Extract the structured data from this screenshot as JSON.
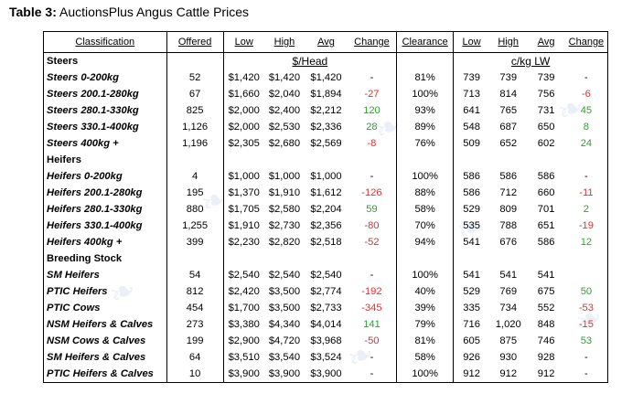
{
  "title": {
    "prefix": "Table 3:",
    "text": "AuctionsPlus Angus Cattle Prices"
  },
  "colors": {
    "positive": "#2aa52a",
    "negative": "#e03030"
  },
  "headers": {
    "classification": "Classification",
    "offered": "Offered",
    "low": "Low",
    "high": "High",
    "avg": "Avg",
    "change": "Change",
    "clearance": "Clearance",
    "kg_low": "Low",
    "kg_high": "High",
    "kg_avg": "Avg",
    "kg_change": "Change"
  },
  "units": {
    "head": "$/Head",
    "kg": "c/kg LW"
  },
  "sections": [
    {
      "name": "Steers",
      "rows": [
        {
          "cls": "Steers 0-200kg",
          "offered": "52",
          "low": "$1,420",
          "high": "$1,420",
          "avg": "$1,420",
          "change": "-",
          "clearance": "81%",
          "kg_low": "739",
          "kg_high": "739",
          "kg_avg": "739",
          "kg_change": "-"
        },
        {
          "cls": "Steers 200.1-280kg",
          "offered": "67",
          "low": "$1,660",
          "high": "$2,040",
          "avg": "$1,894",
          "change": "-27",
          "clearance": "100%",
          "kg_low": "713",
          "kg_high": "814",
          "kg_avg": "756",
          "kg_change": "-6"
        },
        {
          "cls": "Steers 280.1-330kg",
          "offered": "825",
          "low": "$2,000",
          "high": "$2,400",
          "avg": "$2,212",
          "change": "120",
          "clearance": "93%",
          "kg_low": "641",
          "kg_high": "765",
          "kg_avg": "731",
          "kg_change": "45"
        },
        {
          "cls": "Steers 330.1-400kg",
          "offered": "1,126",
          "low": "$2,000",
          "high": "$2,530",
          "avg": "$2,336",
          "change": "28",
          "clearance": "89%",
          "kg_low": "548",
          "kg_high": "687",
          "kg_avg": "650",
          "kg_change": "8"
        },
        {
          "cls": "Steers 400kg +",
          "offered": "1,196",
          "low": "$2,305",
          "high": "$2,680",
          "avg": "$2,569",
          "change": "-8",
          "clearance": "76%",
          "kg_low": "509",
          "kg_high": "652",
          "kg_avg": "602",
          "kg_change": "24"
        }
      ]
    },
    {
      "name": "Heifers",
      "rows": [
        {
          "cls": "Heifers 0-200kg",
          "offered": "4",
          "low": "$1,000",
          "high": "$1,000",
          "avg": "$1,000",
          "change": "-",
          "clearance": "100%",
          "kg_low": "586",
          "kg_high": "586",
          "kg_avg": "586",
          "kg_change": "-"
        },
        {
          "cls": "Heifers 200.1-280kg",
          "offered": "195",
          "low": "$1,370",
          "high": "$1,910",
          "avg": "$1,612",
          "change": "-126",
          "clearance": "88%",
          "kg_low": "586",
          "kg_high": "712",
          "kg_avg": "660",
          "kg_change": "-11"
        },
        {
          "cls": "Heifers 280.1-330kg",
          "offered": "880",
          "low": "$1,705",
          "high": "$2,580",
          "avg": "$2,204",
          "change": "59",
          "clearance": "58%",
          "kg_low": "529",
          "kg_high": "809",
          "kg_avg": "701",
          "kg_change": "2"
        },
        {
          "cls": "Heifers 330.1-400kg",
          "offered": "1,255",
          "low": "$1,910",
          "high": "$2,730",
          "avg": "$2,356",
          "change": "-80",
          "clearance": "70%",
          "kg_low": "535",
          "kg_high": "788",
          "kg_avg": "651",
          "kg_change": "-19"
        },
        {
          "cls": "Heifers 400kg +",
          "offered": "399",
          "low": "$2,230",
          "high": "$2,820",
          "avg": "$2,518",
          "change": "-52",
          "clearance": "94%",
          "kg_low": "541",
          "kg_high": "676",
          "kg_avg": "586",
          "kg_change": "12"
        }
      ]
    },
    {
      "name": "Breeding Stock",
      "rows": [
        {
          "cls": "SM Heifers",
          "offered": "54",
          "low": "$2,540",
          "high": "$2,540",
          "avg": "$2,540",
          "change": "-",
          "clearance": "100%",
          "kg_low": "541",
          "kg_high": "541",
          "kg_avg": "541",
          "kg_change": ""
        },
        {
          "cls": "PTIC Heifers",
          "offered": "812",
          "low": "$2,420",
          "high": "$3,500",
          "avg": "$2,774",
          "change": "-192",
          "clearance": "40%",
          "kg_low": "529",
          "kg_high": "769",
          "kg_avg": "675",
          "kg_change": "50"
        },
        {
          "cls": "PTIC Cows",
          "offered": "454",
          "low": "$1,700",
          "high": "$3,500",
          "avg": "$2,733",
          "change": "-345",
          "clearance": "39%",
          "kg_low": "335",
          "kg_high": "734",
          "kg_avg": "552",
          "kg_change": "-53"
        },
        {
          "cls": "NSM Heifers & Calves",
          "offered": "273",
          "low": "$3,380",
          "high": "$4,340",
          "avg": "$4,014",
          "change": "141",
          "clearance": "79%",
          "kg_low": "716",
          "kg_high": "1,020",
          "kg_avg": "848",
          "kg_change": "-15"
        },
        {
          "cls": "NSM Cows & Calves",
          "offered": "199",
          "low": "$2,900",
          "high": "$4,720",
          "avg": "$3,968",
          "change": "-50",
          "clearance": "81%",
          "kg_low": "605",
          "kg_high": "875",
          "kg_avg": "746",
          "kg_change": "53"
        },
        {
          "cls": "SM Heifers & Calves",
          "offered": "64",
          "low": "$3,510",
          "high": "$3,540",
          "avg": "$3,524",
          "change": "-",
          "clearance": "58%",
          "kg_low": "926",
          "kg_high": "930",
          "kg_avg": "928",
          "kg_change": "-"
        },
        {
          "cls": "PTIC Heifers & Calves",
          "offered": "10",
          "low": "$3,900",
          "high": "$3,900",
          "avg": "$3,900",
          "change": "-",
          "clearance": "100%",
          "kg_low": "912",
          "kg_high": "912",
          "kg_avg": "912",
          "kg_change": "-"
        }
      ]
    }
  ]
}
